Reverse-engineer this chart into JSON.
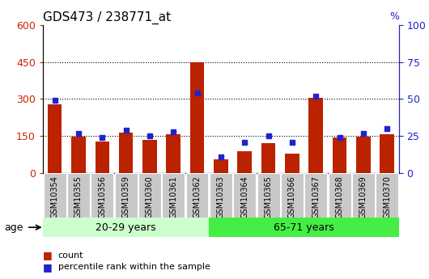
{
  "title": "GDS473 / 238771_at",
  "samples": [
    "GSM10354",
    "GSM10355",
    "GSM10356",
    "GSM10359",
    "GSM10360",
    "GSM10361",
    "GSM10362",
    "GSM10363",
    "GSM10364",
    "GSM10365",
    "GSM10366",
    "GSM10367",
    "GSM10368",
    "GSM10369",
    "GSM10370"
  ],
  "counts": [
    280,
    148,
    128,
    163,
    133,
    158,
    448,
    57,
    88,
    122,
    77,
    305,
    143,
    148,
    158
  ],
  "percentiles": [
    49,
    27,
    24,
    29,
    25,
    28,
    54,
    11,
    21,
    25,
    21,
    52,
    24,
    27,
    30
  ],
  "group1_label": "20-29 years",
  "group2_label": "65-71 years",
  "group1_count": 7,
  "group2_count": 8,
  "age_label": "age",
  "bar_color": "#BB2200",
  "marker_color": "#2222CC",
  "group1_bg": "#CCFFCC",
  "group2_bg": "#44EE44",
  "xticklabel_bg": "#C8C8C8",
  "y_left_color": "#CC2200",
  "y_right_color": "#2222CC",
  "ylim_left": [
    0,
    600
  ],
  "ylim_right": [
    0,
    100
  ],
  "yticks_left": [
    0,
    150,
    300,
    450,
    600
  ],
  "yticks_right": [
    0,
    25,
    50,
    75,
    100
  ],
  "legend_count_label": "count",
  "legend_pct_label": "percentile rank within the sample"
}
